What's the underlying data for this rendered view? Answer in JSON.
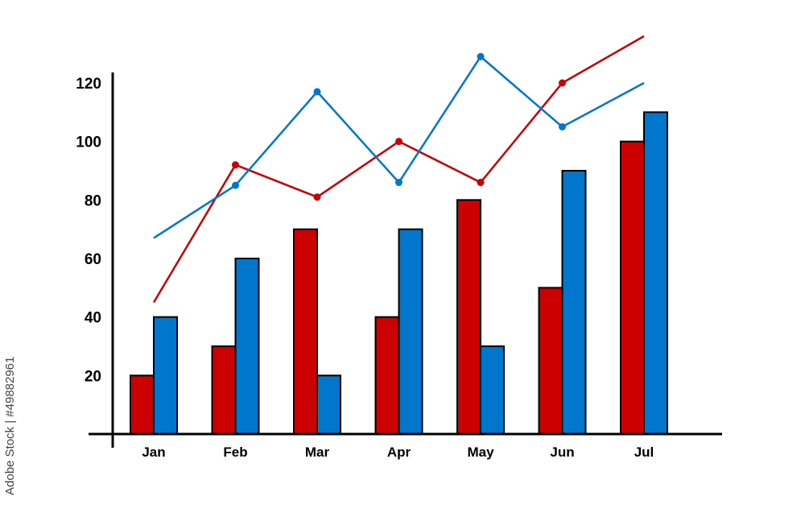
{
  "chart_data": {
    "type": "bar",
    "categories": [
      "Jan",
      "Feb",
      "Mar",
      "Apr",
      "May",
      "Jun",
      "Jul"
    ],
    "series": [
      {
        "kind": "bar",
        "color": "#cc0000",
        "values": [
          20,
          30,
          70,
          40,
          80,
          50,
          100
        ]
      },
      {
        "kind": "bar",
        "color": "#0077cc",
        "values": [
          40,
          60,
          20,
          70,
          30,
          90,
          110
        ]
      },
      {
        "kind": "line",
        "color": "#cc0000",
        "values": [
          45,
          92,
          81,
          100,
          86,
          120,
          136
        ]
      },
      {
        "kind": "line",
        "color": "#0077cc",
        "values": [
          67,
          85,
          117,
          86,
          129,
          105,
          120
        ]
      }
    ],
    "yticks": [
      20,
      40,
      60,
      80,
      100,
      120
    ],
    "ylim": [
      0,
      130
    ],
    "grid": false,
    "title": "",
    "xlabel": "",
    "ylabel": ""
  },
  "watermark": {
    "side_text": "Adobe Stock | #49882961"
  }
}
